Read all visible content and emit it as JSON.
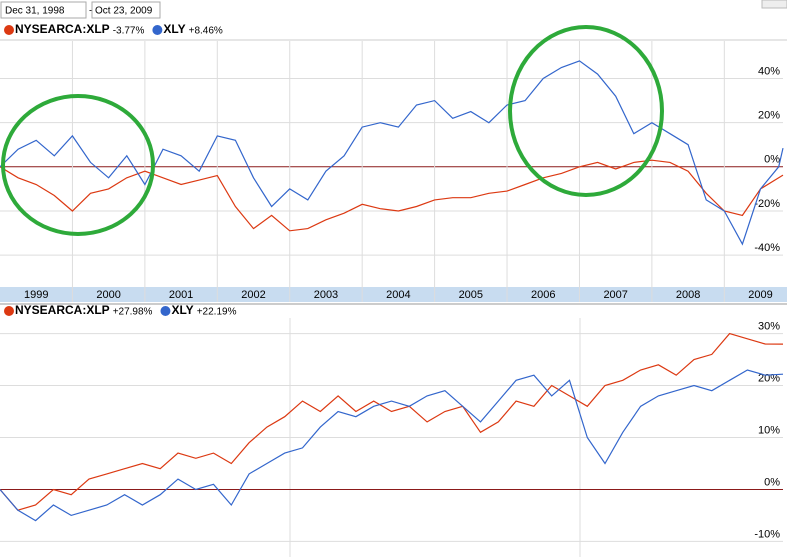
{
  "header": {
    "start_date": "Dec 31, 1998",
    "separator": "-",
    "end_date": "Oct 23, 2009"
  },
  "chart_data": [
    {
      "type": "line",
      "x": [
        1999,
        1999.25,
        1999.5,
        1999.75,
        2000,
        2000.25,
        2000.5,
        2000.75,
        2001,
        2001.25,
        2001.5,
        2001.75,
        2002,
        2002.25,
        2002.5,
        2002.75,
        2003,
        2003.25,
        2003.5,
        2003.75,
        2004,
        2004.25,
        2004.5,
        2004.75,
        2005,
        2005.25,
        2005.5,
        2005.75,
        2006,
        2006.25,
        2006.5,
        2006.75,
        2007,
        2007.25,
        2007.5,
        2007.75,
        2008,
        2008.25,
        2008.5,
        2008.75,
        2009,
        2009.25,
        2009.5,
        2009.75,
        2009.81
      ],
      "series": [
        {
          "name": "NYSEARCA:XLP",
          "change": "-3.77%",
          "color": "#dc3912",
          "values": [
            0,
            -5,
            -8,
            -13,
            -20,
            -12,
            -10,
            -5,
            -2,
            -5,
            -8,
            -6,
            -4,
            -18,
            -28,
            -22,
            -29,
            -28,
            -24,
            -21,
            -17,
            -19,
            -20,
            -18,
            -15,
            -14,
            -14,
            -12,
            -11,
            -8,
            -5,
            -3,
            0,
            2,
            -1,
            2,
            3,
            2,
            -2,
            -12,
            -20,
            -22,
            -10,
            -5,
            -3.77
          ]
        },
        {
          "name": "XLY",
          "change": "+8.46%",
          "color": "#3366cc",
          "values": [
            0,
            8,
            12,
            5,
            14,
            2,
            -5,
            5,
            -8,
            8,
            5,
            -2,
            14,
            12,
            -5,
            -18,
            -10,
            -15,
            -2,
            5,
            18,
            20,
            18,
            28,
            30,
            22,
            25,
            20,
            28,
            30,
            40,
            45,
            48,
            42,
            32,
            15,
            20,
            15,
            10,
            -15,
            -20,
            -35,
            -10,
            0,
            8.46
          ]
        }
      ],
      "xlim": [
        1999,
        2009.81
      ],
      "xticks": [
        {
          "value": 1999.5,
          "label": "1999"
        },
        {
          "value": 2000.5,
          "label": "2000"
        },
        {
          "value": 2001.5,
          "label": "2001"
        },
        {
          "value": 2002.5,
          "label": "2002"
        },
        {
          "value": 2003.5,
          "label": "2003"
        },
        {
          "value": 2004.5,
          "label": "2004"
        },
        {
          "value": 2005.5,
          "label": "2005"
        },
        {
          "value": 2006.5,
          "label": "2006"
        },
        {
          "value": 2007.5,
          "label": "2007"
        },
        {
          "value": 2008.5,
          "label": "2008"
        },
        {
          "value": 2009.5,
          "label": "2009"
        }
      ],
      "ylim": [
        -54,
        57
      ],
      "yticks": [
        {
          "value": 40,
          "label": "40%"
        },
        {
          "value": 20,
          "label": "20%"
        },
        {
          "value": 0,
          "label": "0%"
        },
        {
          "value": -20,
          "label": "-20%"
        },
        {
          "value": -40,
          "label": "-40%"
        }
      ],
      "grid": true
    },
    {
      "type": "line",
      "series": [
        {
          "name": "NYSEARCA:XLP",
          "change": "+27.98%",
          "color": "#dc3912",
          "values": [
            0,
            -4,
            -3,
            0,
            -1,
            2,
            3,
            4,
            5,
            4,
            7,
            6,
            7,
            5,
            9,
            12,
            14,
            17,
            15,
            18,
            15,
            17,
            15,
            16,
            13,
            15,
            16,
            11,
            13,
            17,
            16,
            20,
            18,
            16,
            20,
            21,
            23,
            24,
            22,
            25,
            26,
            30,
            29,
            28,
            27.98
          ]
        },
        {
          "name": "XLY",
          "change": "+22.19%",
          "color": "#3366cc",
          "values": [
            0,
            -4,
            -6,
            -3,
            -5,
            -4,
            -3,
            -1,
            -3,
            -1,
            2,
            0,
            1,
            -3,
            3,
            5,
            7,
            8,
            12,
            15,
            14,
            16,
            17,
            16,
            18,
            19,
            16,
            13,
            17,
            21,
            22,
            18,
            21,
            10,
            5,
            11,
            16,
            18,
            19,
            20,
            19,
            21,
            23,
            22,
            22.19
          ]
        }
      ],
      "ylim": [
        -13,
        33
      ],
      "yticks": [
        {
          "value": 30,
          "label": "30%"
        },
        {
          "value": 20,
          "label": "20%"
        },
        {
          "value": 10,
          "label": "10%"
        },
        {
          "value": 0,
          "label": "0%"
        },
        {
          "value": -10,
          "label": "-10%"
        }
      ],
      "grid": true
    }
  ]
}
